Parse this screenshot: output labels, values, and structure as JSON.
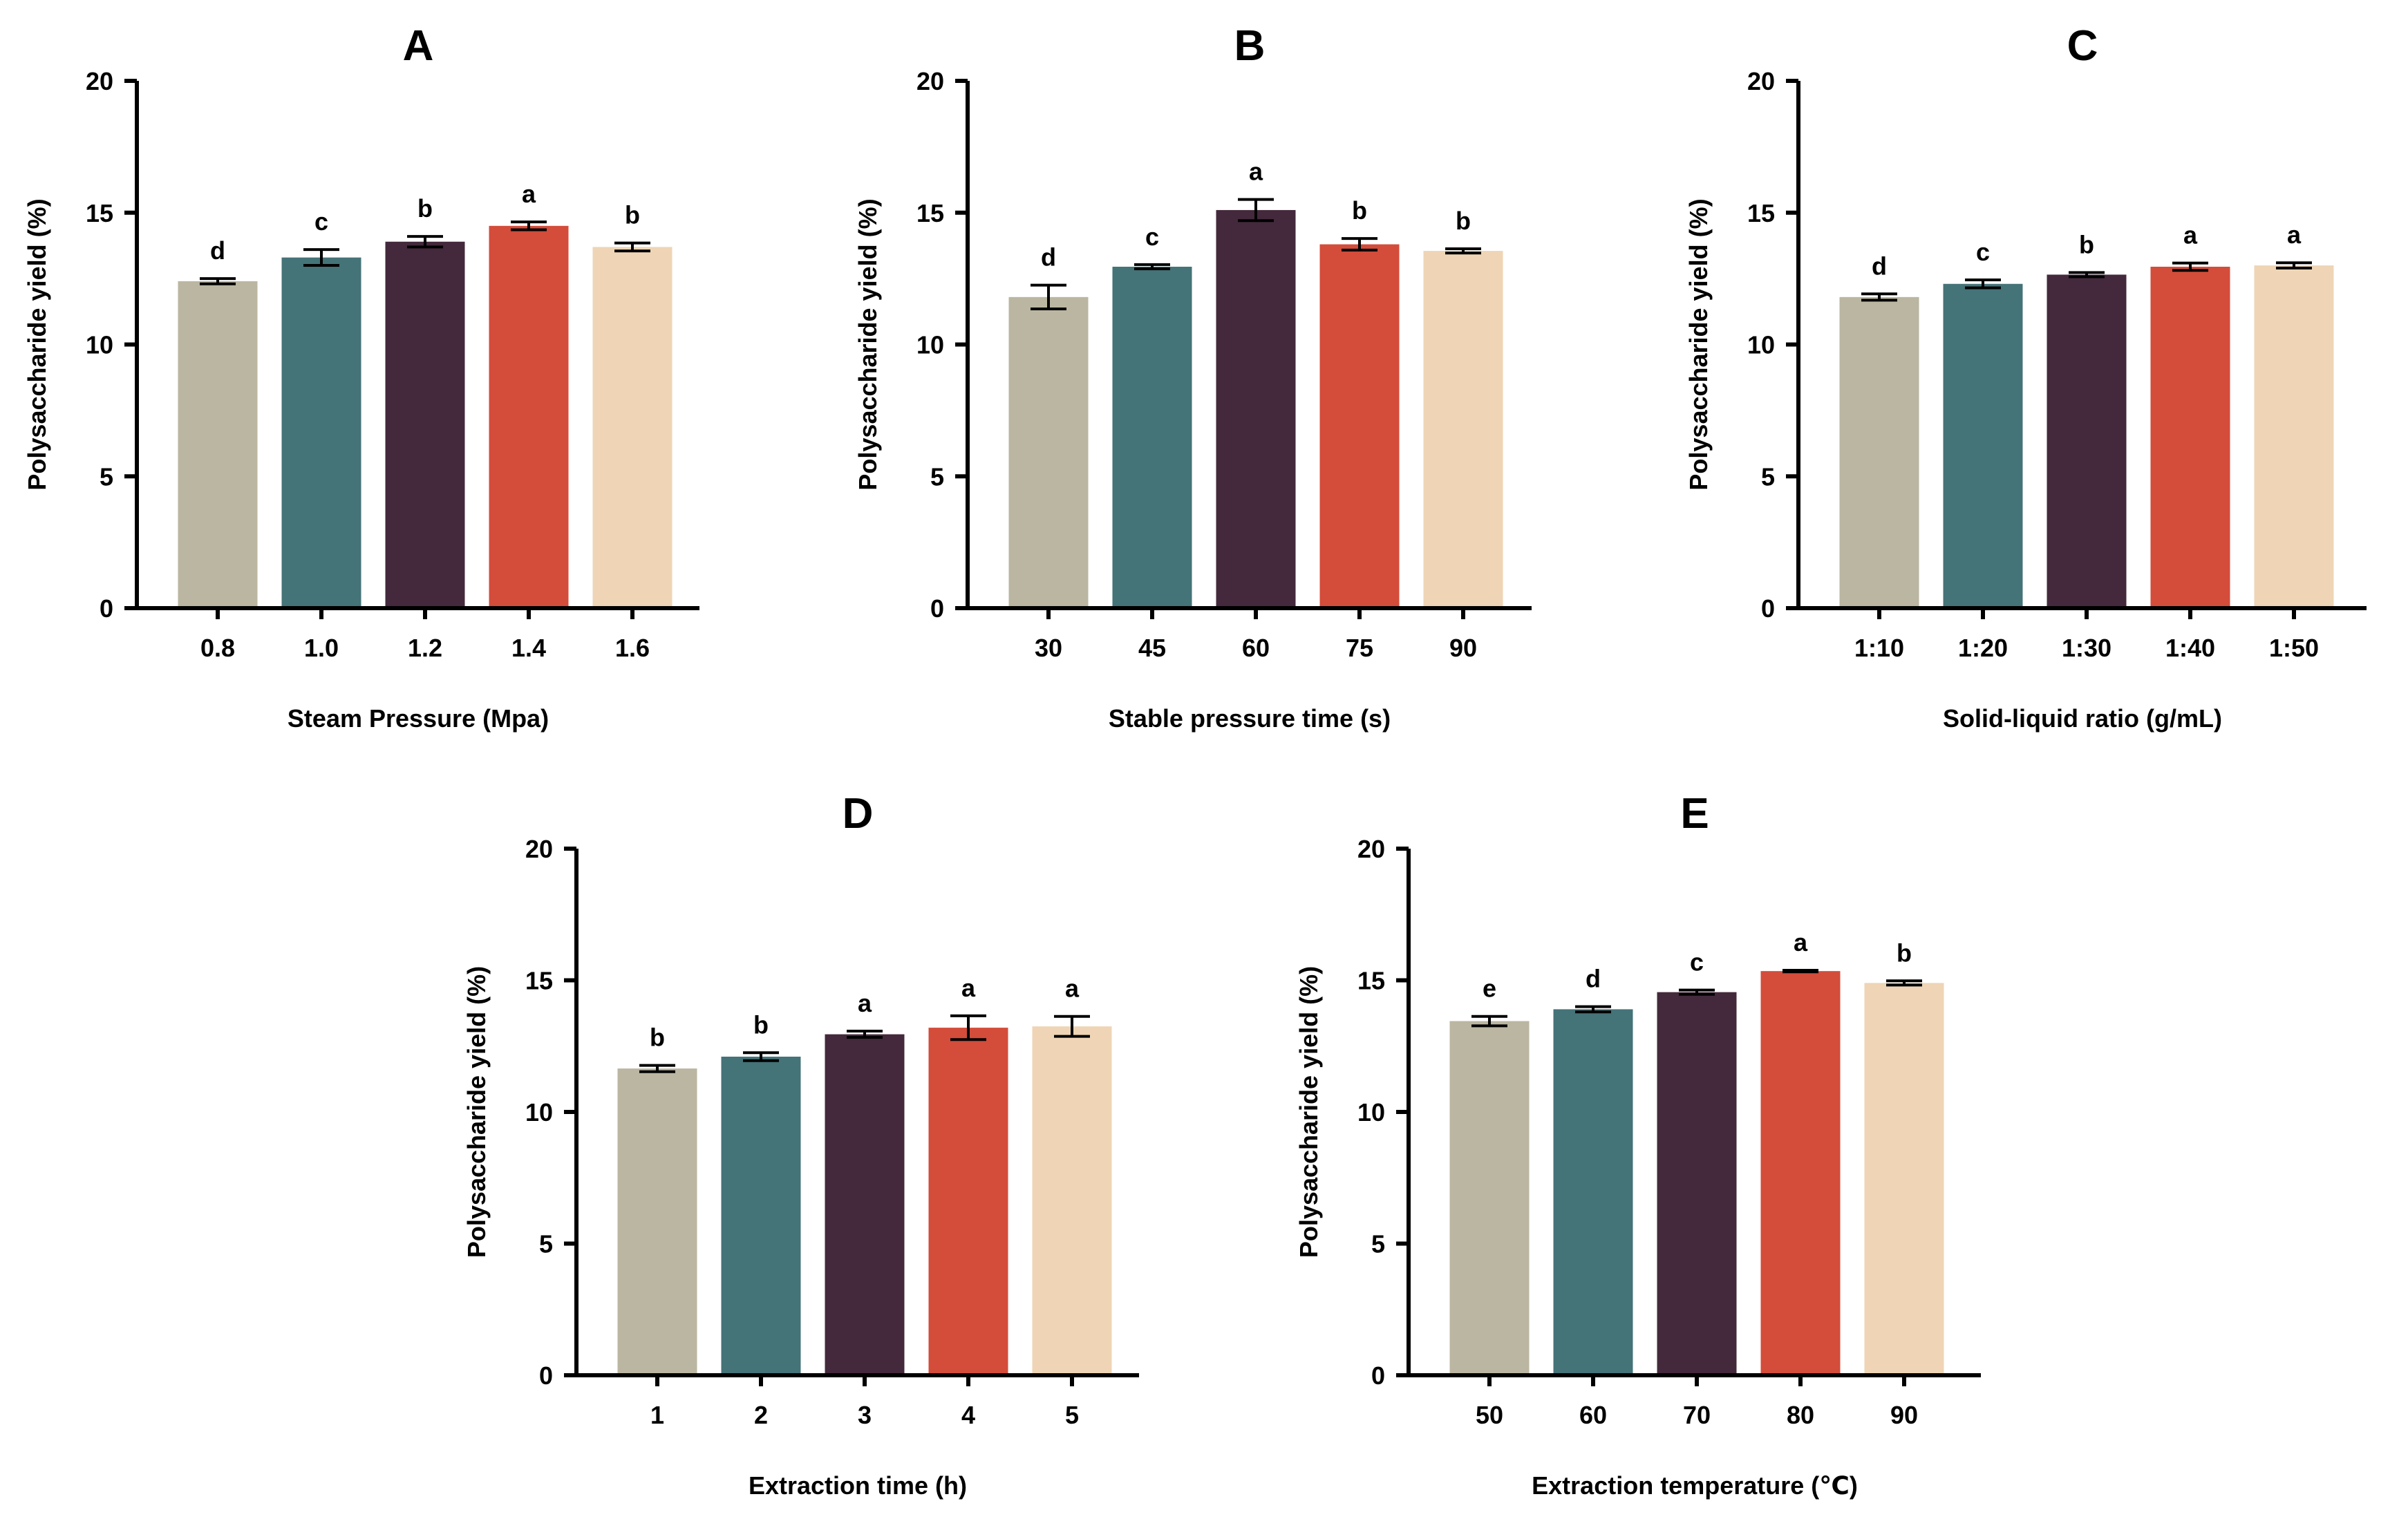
{
  "chart_data": [
    {
      "type": "bar",
      "title": "A",
      "xlabel": "Steam Pressure (Mpa)",
      "ylabel": "Polysaccharide yield (%)",
      "ylim": [
        0,
        20
      ],
      "yticks": [
        "0",
        "5",
        "10",
        "15",
        "20"
      ],
      "categories": [
        "0.8",
        "1.0",
        "1.2",
        "1.4",
        "1.6"
      ],
      "values": [
        12.4,
        13.3,
        13.9,
        14.5,
        13.7
      ],
      "errors": [
        0.1,
        0.3,
        0.2,
        0.15,
        0.15
      ],
      "significance": [
        "d",
        "c",
        "b",
        "a",
        "b"
      ]
    },
    {
      "type": "bar",
      "title": "B",
      "xlabel": "Stable pressure time (s)",
      "ylabel": "Polysaccharide yield (%)",
      "ylim": [
        0,
        20
      ],
      "yticks": [
        "0",
        "5",
        "10",
        "15",
        "20"
      ],
      "categories": [
        "30",
        "45",
        "60",
        "75",
        "90"
      ],
      "values": [
        11.8,
        12.95,
        15.1,
        13.8,
        13.55
      ],
      "errors": [
        0.45,
        0.08,
        0.4,
        0.22,
        0.08
      ],
      "significance": [
        "d",
        "c",
        "a",
        "b",
        "b"
      ]
    },
    {
      "type": "bar",
      "title": "C",
      "xlabel": "Solid-liquid ratio (g/mL)",
      "ylabel": "Polysaccharide yield (%)",
      "ylim": [
        0,
        20
      ],
      "yticks": [
        "0",
        "5",
        "10",
        "15",
        "20"
      ],
      "categories": [
        "1:10",
        "1:20",
        "1:30",
        "1:40",
        "1:50"
      ],
      "values": [
        11.8,
        12.3,
        12.65,
        12.95,
        13.0
      ],
      "errors": [
        0.12,
        0.15,
        0.08,
        0.14,
        0.1
      ],
      "significance": [
        "d",
        "c",
        "b",
        "a",
        "a"
      ]
    },
    {
      "type": "bar",
      "title": "D",
      "xlabel": "Extraction time (h)",
      "ylabel": "Polysaccharide yield (%)",
      "ylim": [
        0,
        20
      ],
      "yticks": [
        "0",
        "5",
        "10",
        "15",
        "20"
      ],
      "categories": [
        "1",
        "2",
        "3",
        "4",
        "5"
      ],
      "values": [
        11.65,
        12.1,
        12.95,
        13.2,
        13.25
      ],
      "errors": [
        0.12,
        0.15,
        0.12,
        0.45,
        0.38
      ],
      "significance": [
        "b",
        "b",
        "a",
        "a",
        "a"
      ]
    },
    {
      "type": "bar",
      "title": "E",
      "xlabel": "Extraction temperature (℃)",
      "ylabel": "Polysaccharide yield (%)",
      "ylim": [
        0,
        20
      ],
      "yticks": [
        "0",
        "5",
        "10",
        "15",
        "20"
      ],
      "categories": [
        "50",
        "60",
        "70",
        "80",
        "90"
      ],
      "values": [
        13.45,
        13.9,
        14.55,
        15.35,
        14.9
      ],
      "errors": [
        0.18,
        0.1,
        0.08,
        0.03,
        0.08
      ],
      "significance": [
        "e",
        "d",
        "c",
        "a",
        "b"
      ]
    }
  ],
  "colors": [
    "#bab6a1",
    "#447378",
    "#43293b",
    "#d44c3a",
    "#efd5b5"
  ]
}
